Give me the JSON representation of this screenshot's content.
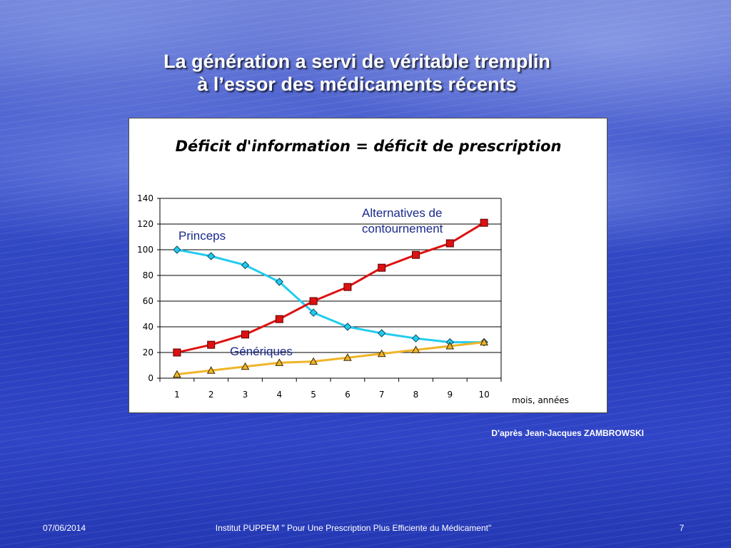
{
  "slide": {
    "title_line1": "La génération a servi de véritable tremplin",
    "title_line2": "à l’essor des médicaments récents",
    "source": "D'après Jean-Jacques ZAMBROWSKI",
    "footer_date": "07/06/2014",
    "footer_center": "Institut PUPPEM \" Pour Une Prescription Plus Efficiente du Médicament\"",
    "footer_page": "7"
  },
  "chart_data": {
    "type": "line",
    "title": "Déficit d'information = déficit de prescription",
    "xlabel": "mois, années",
    "ylabel": "",
    "x": [
      1,
      2,
      3,
      4,
      5,
      6,
      7,
      8,
      9,
      10
    ],
    "ylim": [
      0,
      140
    ],
    "yticks": [
      0,
      20,
      40,
      60,
      80,
      100,
      120,
      140
    ],
    "grid": true,
    "series": [
      {
        "name": "Princeps",
        "color": "#22ccee",
        "marker": "diamond",
        "values": [
          100,
          95,
          88,
          75,
          51,
          40,
          35,
          31,
          28,
          28
        ]
      },
      {
        "name": "Alternatives de contournement",
        "color": "#dd1111",
        "marker": "square",
        "values": [
          20,
          26,
          34,
          46,
          60,
          71,
          86,
          96,
          105,
          121
        ]
      },
      {
        "name": "Génériques",
        "color": "#f0b428",
        "marker": "triangle",
        "values": [
          3,
          6,
          9,
          12,
          13,
          16,
          19,
          22,
          25,
          28
        ]
      }
    ],
    "annotations": [
      {
        "lines": [
          "Princeps"
        ]
      },
      {
        "lines": [
          "Alternatives de",
          "contournement"
        ]
      },
      {
        "lines": [
          "Génériques"
        ]
      }
    ]
  }
}
